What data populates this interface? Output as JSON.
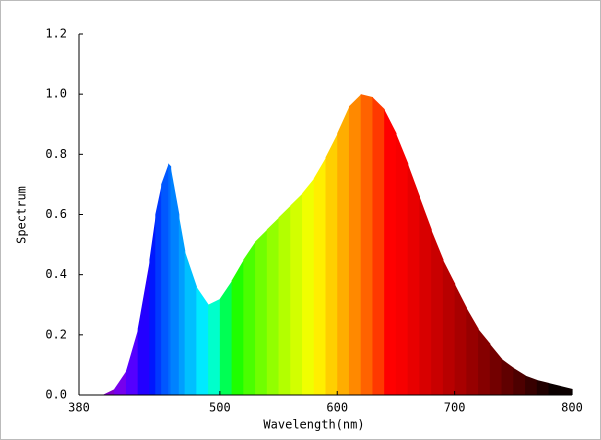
{
  "chart_data": {
    "type": "spectrum-area",
    "xlabel": "Wavelength(nm)",
    "ylabel": "Spectrum",
    "x": [
      380,
      400,
      410,
      420,
      430,
      440,
      445,
      450,
      456,
      458,
      465,
      470,
      480,
      490,
      500,
      510,
      520,
      530,
      540,
      550,
      560,
      570,
      580,
      590,
      600,
      610,
      620,
      630,
      640,
      650,
      660,
      670,
      680,
      690,
      700,
      710,
      720,
      730,
      740,
      750,
      760,
      770,
      780,
      790,
      800
    ],
    "values": [
      0,
      0,
      0.02,
      0.08,
      0.22,
      0.45,
      0.6,
      0.7,
      0.77,
      0.76,
      0.6,
      0.48,
      0.36,
      0.3,
      0.32,
      0.38,
      0.45,
      0.51,
      0.55,
      0.59,
      0.63,
      0.67,
      0.72,
      0.79,
      0.87,
      0.96,
      1.0,
      0.99,
      0.95,
      0.87,
      0.77,
      0.66,
      0.55,
      0.45,
      0.37,
      0.29,
      0.22,
      0.17,
      0.12,
      0.09,
      0.065,
      0.05,
      0.04,
      0.03,
      0.02
    ],
    "xlim": [
      380,
      800
    ],
    "xticks": [
      380,
      500,
      600,
      700,
      800
    ],
    "ylim": [
      0,
      1.2
    ],
    "yticks": [
      {
        "value": 0,
        "label": "0.0"
      },
      0.2,
      0.4,
      0.6,
      0.8,
      {
        "value": 1,
        "label": "1.0"
      },
      1.2
    ]
  }
}
